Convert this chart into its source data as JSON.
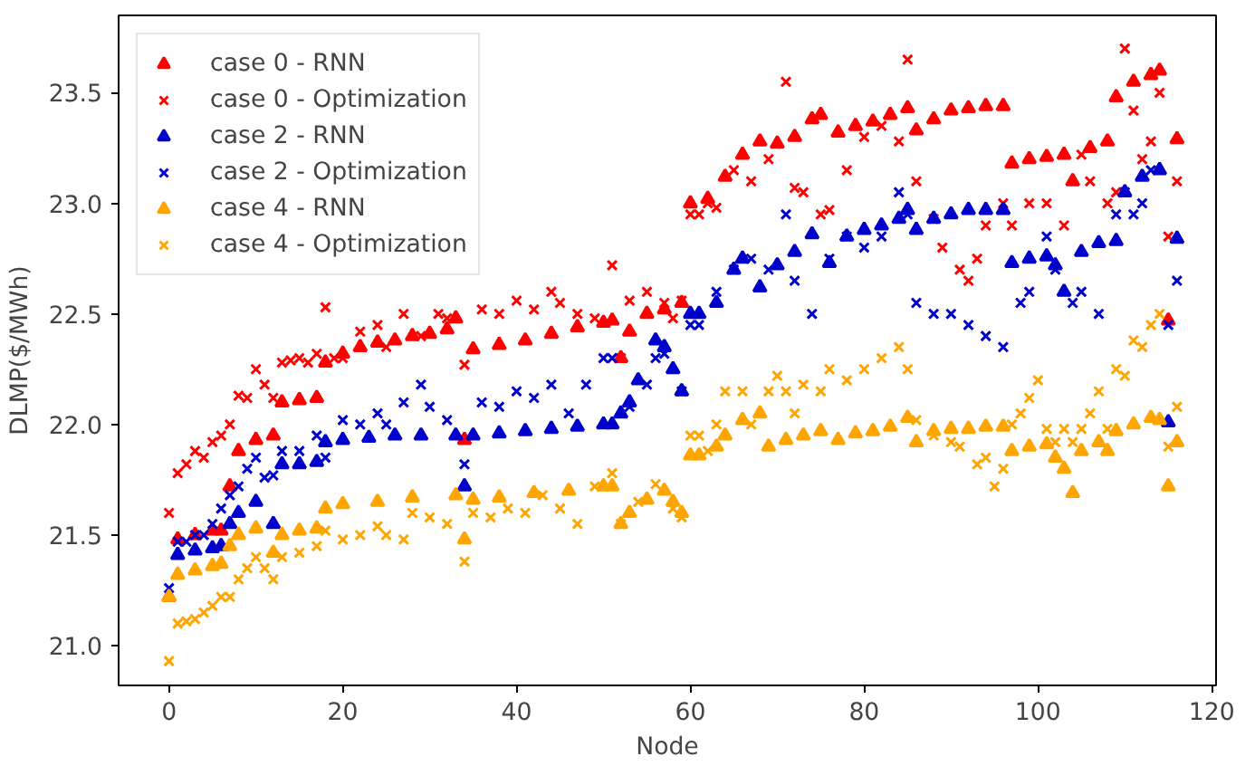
{
  "chart_data": {
    "type": "scatter",
    "xlabel": "Node",
    "ylabel": "DLMP($/MWh)",
    "xlim": [
      -5.8,
      120.5
    ],
    "ylim": [
      20.82,
      23.85
    ],
    "xticks": [
      0,
      20,
      40,
      60,
      80,
      100,
      120
    ],
    "yticks": [
      {
        "value": 21.0,
        "label": "21.0"
      },
      {
        "value": 21.5,
        "label": "21.5"
      },
      {
        "value": 22.0,
        "label": "22.0"
      },
      {
        "value": 22.5,
        "label": "22.5"
      },
      {
        "value": 23.0,
        "label": "23.0"
      },
      {
        "value": 23.5,
        "label": "23.5"
      }
    ],
    "grid": false,
    "legend": "top left",
    "series": [
      {
        "name": "case 0 - RNN",
        "color": "#ff0000",
        "marker": "triangle",
        "x": [
          0,
          1,
          3,
          5,
          6,
          7,
          8,
          10,
          12,
          13,
          15,
          17,
          18,
          20,
          22,
          24,
          26,
          28,
          30,
          32,
          33,
          34,
          35,
          38,
          41,
          44,
          47,
          50,
          51,
          52,
          53,
          55,
          57,
          59,
          60,
          62,
          64,
          66,
          68,
          70,
          72,
          74,
          75,
          77,
          79,
          81,
          83,
          85,
          86,
          88,
          90,
          92,
          94,
          96,
          97,
          99,
          101,
          103,
          104,
          106,
          108,
          109,
          111,
          113,
          114,
          115,
          116
        ],
        "values": [
          21.22,
          21.48,
          21.5,
          21.52,
          21.52,
          21.72,
          21.88,
          21.93,
          21.95,
          22.1,
          22.11,
          22.12,
          22.28,
          22.32,
          22.35,
          22.37,
          22.38,
          22.4,
          22.41,
          22.43,
          22.48,
          21.93,
          22.34,
          22.36,
          22.38,
          22.41,
          22.44,
          22.46,
          22.47,
          22.3,
          22.42,
          22.5,
          22.52,
          22.55,
          23.0,
          23.02,
          23.12,
          23.22,
          23.28,
          23.27,
          23.3,
          23.38,
          23.4,
          23.32,
          23.35,
          23.37,
          23.4,
          23.43,
          23.33,
          23.38,
          23.42,
          23.43,
          23.44,
          23.44,
          23.18,
          23.2,
          23.21,
          23.22,
          23.1,
          23.25,
          23.28,
          23.48,
          23.55,
          23.58,
          23.6,
          22.47,
          23.29
        ]
      },
      {
        "name": "case 0 - Optimization",
        "color": "#ff0000",
        "marker": "cross",
        "x": [
          0,
          1,
          2,
          3,
          4,
          5,
          6,
          7,
          8,
          9,
          10,
          11,
          12,
          13,
          14,
          15,
          16,
          17,
          18,
          19,
          20,
          22,
          24,
          25,
          27,
          29,
          31,
          32,
          34,
          36,
          38,
          40,
          42,
          44,
          45,
          47,
          49,
          51,
          52,
          53,
          55,
          57,
          58,
          59,
          60,
          61,
          62,
          63,
          65,
          67,
          69,
          71,
          72,
          73,
          75,
          76,
          78,
          80,
          82,
          84,
          85,
          86,
          88,
          89,
          91,
          92,
          93,
          94,
          96,
          97,
          99,
          101,
          103,
          105,
          106,
          108,
          109,
          110,
          111,
          112,
          113,
          114,
          115,
          116
        ],
        "values": [
          21.6,
          21.78,
          21.82,
          21.88,
          21.85,
          21.92,
          21.95,
          22.0,
          22.13,
          22.12,
          22.25,
          22.18,
          22.12,
          22.28,
          22.29,
          22.3,
          22.28,
          22.32,
          22.53,
          22.3,
          22.3,
          22.42,
          22.45,
          22.35,
          22.5,
          22.4,
          22.5,
          22.48,
          22.27,
          22.52,
          22.5,
          22.56,
          22.52,
          22.6,
          22.55,
          22.5,
          22.48,
          22.72,
          22.3,
          22.56,
          22.6,
          22.55,
          22.48,
          22.56,
          22.95,
          22.95,
          23.0,
          22.98,
          23.15,
          23.1,
          23.2,
          23.55,
          23.07,
          23.05,
          22.95,
          22.97,
          23.15,
          23.3,
          23.35,
          23.28,
          23.65,
          23.1,
          22.93,
          22.8,
          22.7,
          22.65,
          22.75,
          22.9,
          23.0,
          22.9,
          23.0,
          23.0,
          22.9,
          23.22,
          23.1,
          23.0,
          23.05,
          23.7,
          23.42,
          23.2,
          23.28,
          23.5,
          22.85,
          23.1
        ]
      },
      {
        "name": "case 2 - RNN",
        "color": "#0000cc",
        "marker": "triangle",
        "x": [
          1,
          3,
          5,
          6,
          7,
          8,
          10,
          12,
          13,
          15,
          17,
          18,
          20,
          23,
          26,
          29,
          33,
          34,
          35,
          38,
          41,
          44,
          47,
          50,
          51,
          52,
          53,
          54,
          56,
          57,
          58,
          59,
          60,
          61,
          63,
          65,
          66,
          68,
          70,
          72,
          74,
          76,
          78,
          80,
          82,
          84,
          85,
          86,
          88,
          90,
          92,
          94,
          96,
          97,
          99,
          101,
          102,
          103,
          105,
          107,
          109,
          110,
          112,
          114,
          115,
          116
        ],
        "values": [
          21.41,
          21.43,
          21.44,
          21.45,
          21.55,
          21.6,
          21.65,
          21.55,
          21.82,
          21.82,
          21.83,
          21.92,
          21.93,
          21.94,
          21.95,
          21.95,
          21.95,
          21.72,
          21.95,
          21.96,
          21.97,
          21.98,
          21.99,
          22.0,
          22.0,
          22.05,
          22.1,
          22.2,
          22.38,
          22.35,
          22.25,
          22.15,
          22.5,
          22.5,
          22.55,
          22.7,
          22.75,
          22.62,
          22.72,
          22.78,
          22.86,
          22.73,
          22.85,
          22.88,
          22.9,
          22.93,
          22.97,
          22.88,
          22.93,
          22.95,
          22.97,
          22.97,
          22.97,
          22.73,
          22.75,
          22.76,
          22.72,
          22.6,
          22.78,
          22.82,
          22.83,
          23.05,
          23.12,
          23.15,
          22.01,
          22.84
        ]
      },
      {
        "name": "case 2 - Optimization",
        "color": "#0000cc",
        "marker": "cross",
        "x": [
          0,
          1,
          2,
          3,
          4,
          5,
          6,
          7,
          8,
          9,
          10,
          11,
          12,
          13,
          15,
          17,
          18,
          20,
          22,
          24,
          25,
          27,
          29,
          30,
          32,
          34,
          36,
          38,
          40,
          42,
          44,
          46,
          48,
          50,
          51,
          53,
          55,
          56,
          57,
          59,
          60,
          61,
          63,
          65,
          67,
          69,
          71,
          72,
          74,
          76,
          78,
          80,
          82,
          84,
          85,
          86,
          88,
          90,
          92,
          94,
          96,
          98,
          99,
          101,
          102,
          104,
          105,
          107,
          109,
          110,
          111,
          112,
          113,
          115,
          116
        ],
        "values": [
          21.26,
          21.47,
          21.47,
          21.5,
          21.5,
          21.55,
          21.62,
          21.68,
          21.72,
          21.8,
          21.85,
          21.76,
          21.77,
          21.88,
          21.88,
          21.95,
          21.85,
          22.02,
          22.0,
          22.05,
          22.0,
          22.1,
          22.18,
          22.08,
          22.02,
          21.82,
          22.1,
          22.08,
          22.15,
          22.12,
          22.18,
          22.05,
          22.18,
          22.3,
          22.3,
          22.08,
          22.18,
          22.3,
          22.32,
          22.15,
          22.45,
          22.45,
          22.6,
          22.7,
          22.75,
          22.7,
          22.95,
          22.65,
          22.5,
          22.75,
          22.85,
          22.8,
          22.85,
          23.05,
          22.95,
          22.55,
          22.5,
          22.5,
          22.45,
          22.4,
          22.35,
          22.55,
          22.6,
          22.85,
          22.7,
          22.55,
          22.6,
          22.5,
          22.95,
          23.05,
          22.95,
          23.0,
          23.15,
          22.45,
          22.65
        ]
      },
      {
        "name": "case 4 - RNN",
        "color": "#ffa500",
        "marker": "triangle",
        "x": [
          0,
          1,
          3,
          5,
          6,
          7,
          8,
          10,
          12,
          13,
          15,
          17,
          18,
          20,
          24,
          28,
          33,
          34,
          35,
          38,
          42,
          46,
          50,
          51,
          52,
          53,
          55,
          57,
          58,
          59,
          60,
          61,
          63,
          64,
          66,
          68,
          69,
          71,
          73,
          75,
          77,
          79,
          81,
          83,
          85,
          86,
          88,
          90,
          92,
          94,
          96,
          97,
          99,
          101,
          102,
          103,
          104,
          105,
          107,
          108,
          109,
          111,
          113,
          114,
          115,
          116
        ],
        "values": [
          21.22,
          21.32,
          21.34,
          21.36,
          21.37,
          21.45,
          21.5,
          21.53,
          21.42,
          21.5,
          21.52,
          21.53,
          21.62,
          21.64,
          21.65,
          21.67,
          21.68,
          21.48,
          21.66,
          21.67,
          21.69,
          21.7,
          21.72,
          21.72,
          21.55,
          21.6,
          21.66,
          21.7,
          21.65,
          21.6,
          21.86,
          21.86,
          21.9,
          21.95,
          22.02,
          22.05,
          21.9,
          21.93,
          21.95,
          21.97,
          21.93,
          21.96,
          21.97,
          21.99,
          22.03,
          21.92,
          21.97,
          21.98,
          21.98,
          21.99,
          21.99,
          21.88,
          21.9,
          21.91,
          21.85,
          21.8,
          21.69,
          21.88,
          21.92,
          21.88,
          21.97,
          22.0,
          22.03,
          22.02,
          21.72,
          21.92
        ]
      },
      {
        "name": "case 4 - Optimization",
        "color": "#ffa500",
        "marker": "cross",
        "x": [
          0,
          1,
          2,
          3,
          4,
          5,
          6,
          7,
          8,
          9,
          10,
          11,
          12,
          13,
          15,
          17,
          18,
          20,
          22,
          24,
          25,
          27,
          28,
          30,
          32,
          34,
          35,
          37,
          39,
          41,
          43,
          45,
          47,
          49,
          51,
          52,
          54,
          56,
          58,
          59,
          60,
          61,
          62,
          63,
          64,
          66,
          67,
          69,
          70,
          71,
          72,
          73,
          75,
          76,
          78,
          80,
          82,
          84,
          85,
          86,
          88,
          90,
          91,
          93,
          94,
          95,
          96,
          97,
          98,
          99,
          100,
          101,
          102,
          103,
          104,
          105,
          106,
          107,
          108,
          109,
          110,
          111,
          112,
          113,
          114,
          115,
          116
        ],
        "values": [
          20.93,
          21.1,
          21.11,
          21.12,
          21.15,
          21.18,
          21.22,
          21.22,
          21.3,
          21.35,
          21.4,
          21.35,
          21.3,
          21.4,
          21.42,
          21.45,
          21.52,
          21.48,
          21.5,
          21.54,
          21.5,
          21.48,
          21.6,
          21.58,
          21.55,
          21.38,
          21.6,
          21.58,
          21.62,
          21.6,
          21.68,
          21.62,
          21.55,
          21.72,
          21.78,
          21.55,
          21.65,
          21.73,
          21.62,
          21.58,
          21.95,
          21.95,
          21.88,
          22.0,
          22.15,
          22.15,
          22.0,
          22.15,
          22.22,
          22.15,
          22.05,
          22.18,
          22.15,
          22.25,
          22.2,
          22.25,
          22.3,
          22.35,
          22.25,
          22.02,
          21.95,
          21.92,
          21.9,
          21.82,
          21.85,
          21.72,
          21.8,
          22.0,
          22.05,
          22.12,
          22.2,
          21.98,
          21.92,
          21.98,
          21.92,
          21.98,
          22.05,
          22.15,
          21.98,
          22.25,
          22.22,
          22.38,
          22.35,
          22.45,
          22.5,
          21.9,
          22.08
        ]
      }
    ]
  }
}
